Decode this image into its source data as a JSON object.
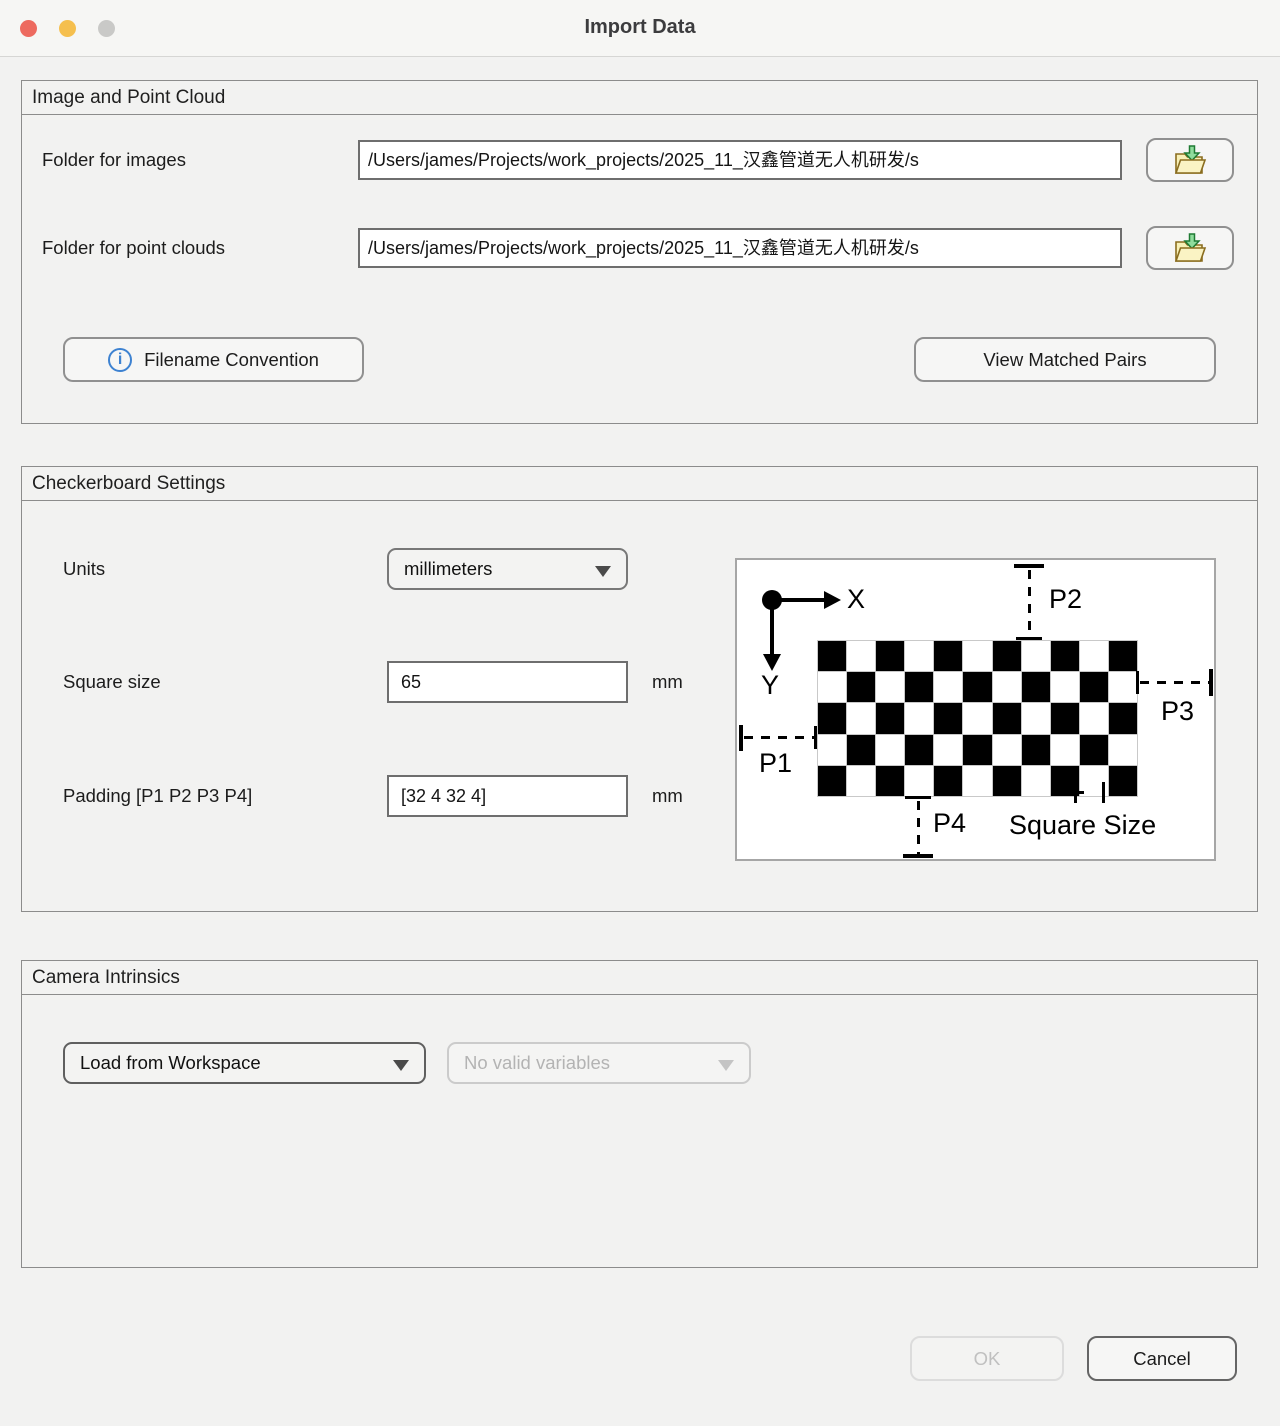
{
  "titlebar": {
    "title": "Import Data",
    "traffic_colors": {
      "close": "#ed6a5f",
      "minimize": "#f5bf4e",
      "zoom_disabled": "#c9c9c7"
    }
  },
  "panels": {
    "image_point_cloud": {
      "title": "Image and Point Cloud",
      "folder_images_label": "Folder for images",
      "folder_images_value": "/Users/james/Projects/work_projects/2025_11_汉鑫管道无人机研发/s",
      "folder_point_clouds_label": "Folder for point clouds",
      "folder_point_clouds_value": "/Users/james/Projects/work_projects/2025_11_汉鑫管道无人机研发/s",
      "filename_convention": "Filename Convention",
      "view_matched_pairs": "View Matched Pairs"
    },
    "checkerboard_settings": {
      "title": "Checkerboard Settings",
      "units_label": "Units",
      "units_value": "millimeters",
      "square_size_label": "Square size",
      "square_size_value": "65",
      "square_size_unit": "mm",
      "padding_label": "Padding [P1 P2 P3 P4]",
      "padding_value": "[32 4 32 4]",
      "padding_unit": "mm",
      "diagram": {
        "x_axis": "X",
        "y_axis": "Y",
        "p1": "P1",
        "p2": "P2",
        "p3": "P3",
        "p4": "P4",
        "square_size_caption": "Square Size",
        "board_rows": 5,
        "board_cols": 11
      }
    },
    "camera_intrinsics": {
      "title": "Camera Intrinsics",
      "source_selected": "Load from Workspace",
      "variables_selected": "No valid variables"
    }
  },
  "footer": {
    "ok": "OK",
    "cancel": "Cancel"
  },
  "colors": {
    "accent_blue": "#3d82d1",
    "folder_yellow": "#f8f0b6",
    "folder_outline": "#8a6d1f",
    "arrow_green": "#8fdc9c",
    "arrow_green_dark": "#1f7a33"
  }
}
